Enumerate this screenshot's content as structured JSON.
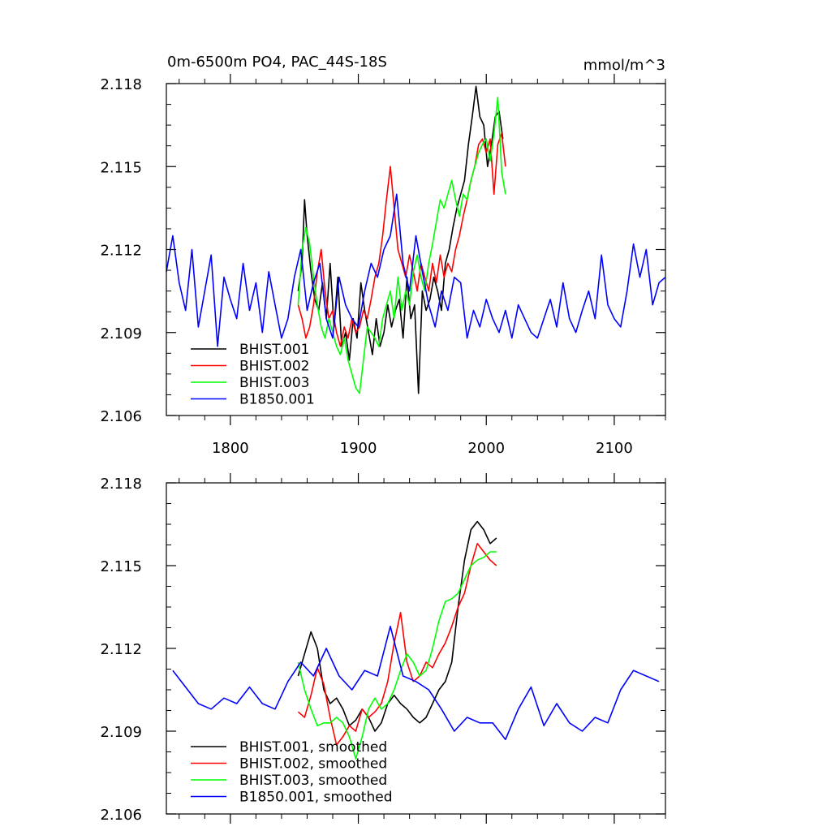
{
  "chart_data": [
    {
      "type": "line",
      "title": "0m-6500m PO4, PAC_44S-18S",
      "units": "mmol/m^3",
      "xlim": [
        1750,
        2140
      ],
      "ylim": [
        2.106,
        2.118
      ],
      "xticks": [
        1800,
        1900,
        2000,
        2100
      ],
      "xtick_labels": [
        "1800",
        "1900",
        "2000",
        "2100"
      ],
      "yticks": [
        2.106,
        2.109,
        2.112,
        2.115,
        2.118
      ],
      "ytick_labels": [
        "2.106",
        "2.109",
        "2.112",
        "2.115",
        "2.118"
      ],
      "legend_position": "bottom-left",
      "series": [
        {
          "name": "BHIST.001",
          "color": "#000000",
          "x": [
            1853,
            1856,
            1858,
            1860,
            1863,
            1866,
            1869,
            1872,
            1875,
            1878,
            1881,
            1884,
            1887,
            1890,
            1893,
            1896,
            1899,
            1902,
            1905,
            1908,
            1911,
            1914,
            1917,
            1920,
            1923,
            1926,
            1929,
            1932,
            1935,
            1938,
            1941,
            1944,
            1947,
            1950,
            1953,
            1956,
            1959,
            1962,
            1965,
            1968,
            1971,
            1974,
            1977,
            1980,
            1983,
            1986,
            1989,
            1992,
            1995,
            1998,
            2001,
            2004,
            2007,
            2010,
            2013
          ],
          "y": [
            2.1105,
            2.1115,
            2.1138,
            2.1125,
            2.1112,
            2.1102,
            2.1098,
            2.1108,
            2.1095,
            2.1115,
            2.1092,
            2.111,
            2.1085,
            2.109,
            2.108,
            2.1095,
            2.1088,
            2.1108,
            2.1098,
            2.109,
            2.1082,
            2.1095,
            2.1085,
            2.109,
            2.11,
            2.1092,
            2.1098,
            2.1102,
            2.1088,
            2.111,
            2.1095,
            2.11,
            2.1068,
            2.1105,
            2.1098,
            2.1102,
            2.111,
            2.1105,
            2.1098,
            2.1115,
            2.112,
            2.1128,
            2.1135,
            2.114,
            2.1145,
            2.1158,
            2.1168,
            2.1179,
            2.1168,
            2.1165,
            2.115,
            2.1158,
            2.1168,
            2.117,
            2.116
          ]
        },
        {
          "name": "BHIST.002",
          "color": "#ff0000",
          "x": [
            1853,
            1856,
            1859,
            1862,
            1865,
            1868,
            1871,
            1874,
            1877,
            1880,
            1883,
            1886,
            1889,
            1892,
            1895,
            1898,
            1901,
            1904,
            1907,
            1910,
            1913,
            1916,
            1919,
            1922,
            1925,
            1928,
            1931,
            1934,
            1937,
            1940,
            1943,
            1946,
            1949,
            1952,
            1955,
            1958,
            1961,
            1964,
            1967,
            1970,
            1973,
            1976,
            1979,
            1982,
            1985,
            1988,
            1991,
            1994,
            1997,
            2000,
            2003,
            2006,
            2009,
            2012,
            2015
          ],
          "y": [
            2.11,
            2.1095,
            2.1088,
            2.1092,
            2.11,
            2.1112,
            2.112,
            2.1105,
            2.1095,
            2.1098,
            2.109,
            2.1085,
            2.1092,
            2.1088,
            2.1095,
            2.109,
            2.1092,
            2.1098,
            2.1095,
            2.1102,
            2.111,
            2.1115,
            2.1125,
            2.1138,
            2.115,
            2.1135,
            2.112,
            2.1115,
            2.111,
            2.1118,
            2.1112,
            2.1105,
            2.1115,
            2.111,
            2.1105,
            2.1115,
            2.1108,
            2.1118,
            2.111,
            2.1115,
            2.1112,
            2.112,
            2.1125,
            2.1132,
            2.1138,
            2.1145,
            2.115,
            2.1158,
            2.116,
            2.1155,
            2.116,
            2.114,
            2.1158,
            2.1162,
            2.115
          ]
        },
        {
          "name": "BHIST.003",
          "color": "#00ff00",
          "x": [
            1853,
            1856,
            1859,
            1862,
            1865,
            1868,
            1871,
            1874,
            1877,
            1880,
            1883,
            1886,
            1889,
            1892,
            1895,
            1898,
            1901,
            1904,
            1907,
            1910,
            1913,
            1916,
            1919,
            1922,
            1925,
            1928,
            1931,
            1934,
            1937,
            1940,
            1943,
            1946,
            1949,
            1952,
            1955,
            1958,
            1961,
            1964,
            1967,
            1970,
            1973,
            1976,
            1979,
            1982,
            1985,
            1988,
            1991,
            1994,
            1997,
            2000,
            2003,
            2006,
            2009,
            2012,
            2015
          ],
          "y": [
            2.11,
            2.112,
            2.1128,
            2.1122,
            2.111,
            2.11,
            2.1092,
            2.1088,
            2.1095,
            2.109,
            2.1085,
            2.1082,
            2.1088,
            2.108,
            2.1075,
            2.107,
            2.1068,
            2.108,
            2.1092,
            2.109,
            2.1088,
            2.1085,
            2.1095,
            2.11,
            2.1105,
            2.1095,
            2.111,
            2.1098,
            2.1105,
            2.11,
            2.1112,
            2.1118,
            2.111,
            2.1105,
            2.1115,
            2.1122,
            2.113,
            2.1138,
            2.1135,
            2.114,
            2.1145,
            2.1138,
            2.1132,
            2.114,
            2.1138,
            2.1145,
            2.115,
            2.1155,
            2.1158,
            2.116,
            2.1152,
            2.1162,
            2.1175,
            2.1148,
            2.114
          ]
        },
        {
          "name": "B1850.001",
          "color": "#0000ff",
          "x": [
            1750,
            1755,
            1760,
            1765,
            1770,
            1775,
            1780,
            1785,
            1790,
            1795,
            1800,
            1805,
            1810,
            1815,
            1820,
            1825,
            1830,
            1835,
            1840,
            1845,
            1850,
            1855,
            1860,
            1865,
            1870,
            1875,
            1880,
            1885,
            1890,
            1895,
            1900,
            1905,
            1910,
            1915,
            1920,
            1925,
            1930,
            1935,
            1940,
            1945,
            1950,
            1955,
            1960,
            1965,
            1970,
            1975,
            1980,
            1985,
            1990,
            1995,
            2000,
            2005,
            2010,
            2015,
            2020,
            2025,
            2030,
            2035,
            2040,
            2045,
            2050,
            2055,
            2060,
            2065,
            2070,
            2075,
            2080,
            2085,
            2090,
            2095,
            2100,
            2105,
            2110,
            2115,
            2120,
            2125,
            2130,
            2135,
            2140
          ],
          "y": [
            2.1112,
            2.1125,
            2.1108,
            2.1098,
            2.112,
            2.1092,
            2.1105,
            2.1118,
            2.1085,
            2.111,
            2.1102,
            2.1095,
            2.1115,
            2.1098,
            2.1108,
            2.109,
            2.1112,
            2.11,
            2.1088,
            2.1095,
            2.111,
            2.112,
            2.1098,
            2.1108,
            2.1115,
            2.1095,
            2.1088,
            2.111,
            2.11,
            2.1095,
            2.1092,
            2.1105,
            2.1115,
            2.111,
            2.112,
            2.1125,
            2.114,
            2.1115,
            2.1105,
            2.1125,
            2.1112,
            2.11,
            2.1092,
            2.1105,
            2.1098,
            2.111,
            2.1108,
            2.1088,
            2.1098,
            2.1092,
            2.1102,
            2.1095,
            2.109,
            2.1098,
            2.1088,
            2.11,
            2.1095,
            2.109,
            2.1088,
            2.1095,
            2.1102,
            2.1092,
            2.1108,
            2.1095,
            2.109,
            2.1098,
            2.1105,
            2.1095,
            2.1118,
            2.11,
            2.1095,
            2.1092,
            2.1105,
            2.1122,
            2.111,
            2.112,
            2.11,
            2.1108,
            2.111
          ]
        }
      ]
    },
    {
      "type": "line",
      "xlim": [
        1750,
        2140
      ],
      "ylim": [
        2.106,
        2.118
      ],
      "xticks": [
        1800,
        1900,
        2000,
        2100
      ],
      "yticks": [
        2.106,
        2.109,
        2.112,
        2.115,
        2.118
      ],
      "ytick_labels": [
        "2.106",
        "2.109",
        "2.112",
        "2.115",
        "2.118"
      ],
      "legend_position": "bottom-left",
      "series": [
        {
          "name": "BHIST.001, smoothed",
          "color": "#000000",
          "x": [
            1853,
            1858,
            1863,
            1868,
            1873,
            1878,
            1883,
            1888,
            1893,
            1898,
            1903,
            1908,
            1913,
            1918,
            1923,
            1928,
            1933,
            1938,
            1943,
            1948,
            1953,
            1958,
            1963,
            1968,
            1973,
            1978,
            1983,
            1988,
            1993,
            1998,
            2003,
            2008
          ],
          "y": [
            2.111,
            2.1118,
            2.1126,
            2.112,
            2.1105,
            2.11,
            2.1102,
            2.1098,
            2.1092,
            2.1094,
            2.1098,
            2.1095,
            2.109,
            2.1093,
            2.11,
            2.1103,
            2.11,
            2.1098,
            2.1095,
            2.1093,
            2.1095,
            2.11,
            2.1105,
            2.1108,
            2.1115,
            2.1135,
            2.1152,
            2.1163,
            2.1166,
            2.1163,
            2.1158,
            2.116
          ]
        },
        {
          "name": "BHIST.002, smoothed",
          "color": "#ff0000",
          "x": [
            1853,
            1858,
            1863,
            1868,
            1873,
            1878,
            1883,
            1888,
            1893,
            1898,
            1903,
            1908,
            1913,
            1918,
            1923,
            1928,
            1933,
            1938,
            1943,
            1948,
            1953,
            1958,
            1963,
            1968,
            1973,
            1978,
            1983,
            1988,
            1993,
            1998,
            2003,
            2008
          ],
          "y": [
            2.1097,
            2.1095,
            2.1103,
            2.1113,
            2.1107,
            2.1095,
            2.1085,
            2.1088,
            2.1092,
            2.109,
            2.1098,
            2.1095,
            2.1097,
            2.11,
            2.1108,
            2.1122,
            2.1133,
            2.1115,
            2.1108,
            2.111,
            2.1115,
            2.1113,
            2.1118,
            2.1122,
            2.1128,
            2.1135,
            2.114,
            2.115,
            2.1158,
            2.1155,
            2.1152,
            2.115
          ]
        },
        {
          "name": "BHIST.003, smoothed",
          "color": "#00ff00",
          "x": [
            1853,
            1858,
            1863,
            1868,
            1873,
            1878,
            1883,
            1888,
            1893,
            1898,
            1903,
            1908,
            1913,
            1918,
            1923,
            1928,
            1933,
            1938,
            1943,
            1948,
            1953,
            1958,
            1963,
            1968,
            1973,
            1978,
            1983,
            1988,
            1993,
            1998,
            2003,
            2008
          ],
          "y": [
            2.1115,
            2.1105,
            2.1098,
            2.1092,
            2.1093,
            2.1093,
            2.1095,
            2.1093,
            2.1088,
            2.108,
            2.1088,
            2.1098,
            2.1102,
            2.1098,
            2.11,
            2.1105,
            2.1112,
            2.1118,
            2.1115,
            2.111,
            2.1112,
            2.112,
            2.113,
            2.1137,
            2.1138,
            2.114,
            2.1145,
            2.115,
            2.1152,
            2.1153,
            2.1155,
            2.1155
          ]
        },
        {
          "name": "B1850.001, smoothed",
          "color": "#0000ff",
          "x": [
            1755,
            1765,
            1775,
            1785,
            1795,
            1805,
            1815,
            1825,
            1835,
            1845,
            1855,
            1865,
            1875,
            1885,
            1895,
            1905,
            1915,
            1925,
            1935,
            1945,
            1955,
            1965,
            1975,
            1985,
            1995,
            2005,
            2015,
            2025,
            2035,
            2045,
            2055,
            2065,
            2075,
            2085,
            2095,
            2105,
            2115,
            2125,
            2135
          ],
          "y": [
            2.1112,
            2.1106,
            2.11,
            2.1098,
            2.1102,
            2.11,
            2.1106,
            2.11,
            2.1098,
            2.1108,
            2.1115,
            2.111,
            2.112,
            2.111,
            2.1105,
            2.1112,
            2.111,
            2.1128,
            2.111,
            2.1108,
            2.1105,
            2.1098,
            2.109,
            2.1095,
            2.1093,
            2.1093,
            2.1087,
            2.1098,
            2.1106,
            2.1092,
            2.11,
            2.1093,
            2.109,
            2.1095,
            2.1093,
            2.1105,
            2.1112,
            2.111,
            2.1108
          ]
        }
      ]
    }
  ]
}
